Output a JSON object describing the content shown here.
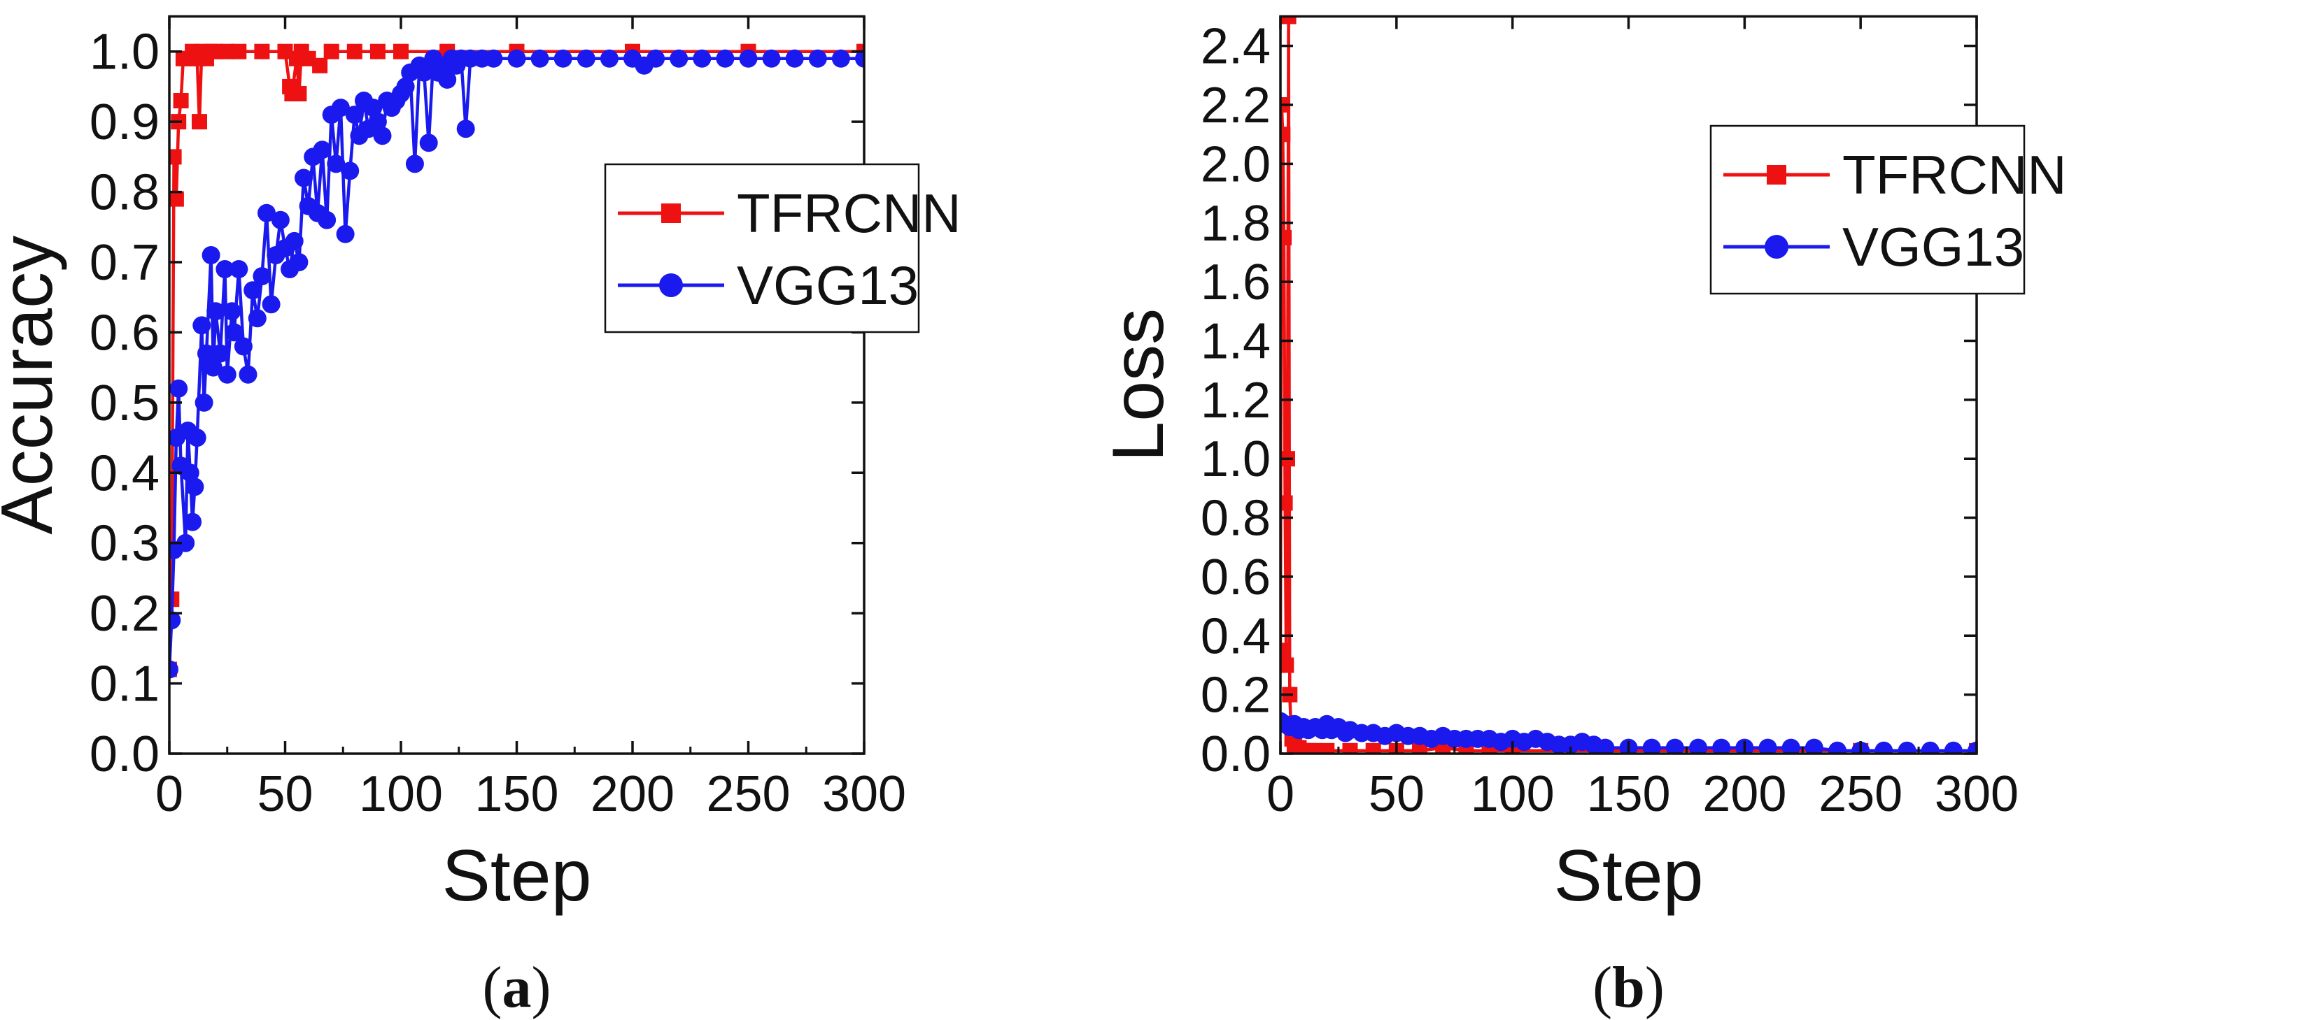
{
  "chart_data": [
    {
      "type": "line",
      "panel_label": "a",
      "title": "",
      "xlabel": "Step",
      "ylabel": "Accuracy",
      "xlim": [
        0,
        300
      ],
      "ylim": [
        0,
        1.05
      ],
      "xticks": [
        0,
        50,
        100,
        150,
        200,
        250,
        300
      ],
      "yticks": [
        0.0,
        0.1,
        0.2,
        0.3,
        0.4,
        0.5,
        0.6,
        0.7,
        0.8,
        0.9,
        1.0
      ],
      "xtick_labels": [
        "0",
        "50",
        "100",
        "150",
        "200",
        "250",
        "300"
      ],
      "ytick_labels": [
        "0.0",
        "0.1",
        "0.2",
        "0.3",
        "0.4",
        "0.5",
        "0.6",
        "0.7",
        "0.8",
        "0.9",
        "1.0"
      ],
      "grid": false,
      "legend_position": "upper-right-inset",
      "series": [
        {
          "name": "TFRCNN",
          "color": "#ee1111",
          "marker": "square",
          "x": [
            0,
            1,
            2,
            3,
            4,
            5,
            6,
            8,
            10,
            12,
            13,
            14,
            16,
            18,
            20,
            25,
            30,
            40,
            50,
            52,
            53,
            55,
            56,
            57,
            60,
            65,
            70,
            80,
            90,
            100,
            120,
            150,
            200,
            250,
            300
          ],
          "y": [
            0.12,
            0.22,
            0.85,
            0.79,
            0.9,
            0.93,
            0.99,
            0.99,
            1.0,
            0.99,
            0.9,
            1.0,
            0.99,
            1.0,
            1.0,
            1.0,
            1.0,
            1.0,
            1.0,
            0.95,
            0.94,
            0.99,
            0.94,
            1.0,
            0.99,
            0.98,
            1.0,
            1.0,
            1.0,
            1.0,
            1.0,
            1.0,
            1.0,
            1.0,
            1.0
          ]
        },
        {
          "name": "VGG13",
          "color": "#1a1aee",
          "marker": "circle",
          "x": [
            0,
            1,
            2,
            3,
            4,
            5,
            7,
            8,
            9,
            10,
            11,
            12,
            14,
            15,
            16,
            18,
            19,
            20,
            22,
            24,
            25,
            27,
            28,
            30,
            32,
            34,
            36,
            38,
            40,
            42,
            44,
            46,
            48,
            50,
            52,
            54,
            56,
            58,
            60,
            62,
            64,
            66,
            68,
            70,
            72,
            74,
            76,
            78,
            80,
            82,
            84,
            86,
            88,
            90,
            92,
            94,
            96,
            98,
            100,
            102,
            104,
            106,
            108,
            110,
            112,
            114,
            116,
            118,
            120,
            122,
            124,
            126,
            128,
            130,
            135,
            140,
            150,
            160,
            170,
            180,
            190,
            200,
            205,
            210,
            220,
            230,
            240,
            250,
            260,
            270,
            280,
            290,
            300
          ],
          "y": [
            0.12,
            0.19,
            0.29,
            0.45,
            0.52,
            0.41,
            0.3,
            0.46,
            0.4,
            0.33,
            0.38,
            0.45,
            0.61,
            0.5,
            0.57,
            0.71,
            0.55,
            0.63,
            0.57,
            0.69,
            0.54,
            0.63,
            0.6,
            0.69,
            0.58,
            0.54,
            0.66,
            0.62,
            0.68,
            0.77,
            0.64,
            0.71,
            0.76,
            0.72,
            0.69,
            0.73,
            0.7,
            0.82,
            0.78,
            0.85,
            0.77,
            0.86,
            0.76,
            0.91,
            0.84,
            0.92,
            0.74,
            0.83,
            0.91,
            0.88,
            0.93,
            0.89,
            0.92,
            0.9,
            0.88,
            0.93,
            0.92,
            0.93,
            0.94,
            0.95,
            0.97,
            0.84,
            0.98,
            0.97,
            0.87,
            0.99,
            0.97,
            0.98,
            0.96,
            0.99,
            0.98,
            0.99,
            0.89,
            0.99,
            0.99,
            0.99,
            0.99,
            0.99,
            0.99,
            0.99,
            0.99,
            0.99,
            0.98,
            0.99,
            0.99,
            0.99,
            0.99,
            0.99,
            0.99,
            0.99,
            0.99,
            0.99,
            0.99
          ]
        }
      ]
    },
    {
      "type": "line",
      "panel_label": "b",
      "title": "",
      "xlabel": "Step",
      "ylabel": "Loss",
      "xlim": [
        0,
        300
      ],
      "ylim": [
        0,
        2.5
      ],
      "xticks": [
        0,
        50,
        100,
        150,
        200,
        250,
        300
      ],
      "yticks": [
        0.0,
        0.2,
        0.4,
        0.6,
        0.8,
        1.0,
        1.2,
        1.4,
        1.6,
        1.8,
        2.0,
        2.2,
        2.4
      ],
      "xtick_labels": [
        "0",
        "50",
        "100",
        "150",
        "200",
        "250",
        "300"
      ],
      "ytick_labels": [
        "0.0",
        "0.2",
        "0.4",
        "0.6",
        "0.8",
        "1.0",
        "1.2",
        "1.4",
        "1.6",
        "1.8",
        "2.0",
        "2.2",
        "2.4"
      ],
      "grid": false,
      "legend_position": "upper-right-inset",
      "series": [
        {
          "name": "TFRCNN",
          "color": "#ee1111",
          "marker": "square",
          "x": [
            0,
            0.5,
            1,
            1.5,
            2,
            2.5,
            3,
            3.5,
            4,
            4.5,
            5,
            6,
            7,
            8,
            10,
            12,
            15,
            20,
            30,
            40,
            50,
            60,
            70,
            80,
            90,
            100,
            150,
            200,
            250,
            300
          ],
          "y": [
            0.35,
            2.2,
            2.1,
            1.75,
            0.85,
            0.3,
            1.0,
            2.5,
            0.2,
            0.1,
            0.05,
            0.03,
            0.02,
            0.02,
            0.01,
            0.01,
            0.01,
            0.01,
            0.01,
            0.01,
            0.01,
            0.01,
            0.02,
            0.01,
            0.01,
            0.01,
            0.01,
            0.01,
            0.01,
            0.01
          ]
        },
        {
          "name": "VGG13",
          "color": "#1a1aee",
          "marker": "circle",
          "x": [
            0,
            2,
            4,
            6,
            8,
            10,
            12,
            15,
            18,
            20,
            22,
            25,
            28,
            30,
            35,
            40,
            45,
            50,
            55,
            60,
            65,
            70,
            75,
            80,
            85,
            90,
            95,
            100,
            105,
            110,
            115,
            120,
            125,
            130,
            135,
            140,
            150,
            160,
            170,
            180,
            190,
            200,
            210,
            220,
            230,
            240,
            250,
            260,
            270,
            280,
            290,
            300
          ],
          "y": [
            0.11,
            0.1,
            0.09,
            0.1,
            0.08,
            0.09,
            0.08,
            0.09,
            0.08,
            0.1,
            0.08,
            0.09,
            0.07,
            0.08,
            0.07,
            0.07,
            0.06,
            0.07,
            0.06,
            0.06,
            0.05,
            0.06,
            0.05,
            0.05,
            0.05,
            0.05,
            0.04,
            0.05,
            0.04,
            0.05,
            0.04,
            0.03,
            0.03,
            0.04,
            0.03,
            0.02,
            0.02,
            0.02,
            0.02,
            0.02,
            0.02,
            0.02,
            0.02,
            0.02,
            0.02,
            0.01,
            0.01,
            0.01,
            0.01,
            0.01,
            0.01,
            0.01
          ]
        }
      ]
    }
  ]
}
